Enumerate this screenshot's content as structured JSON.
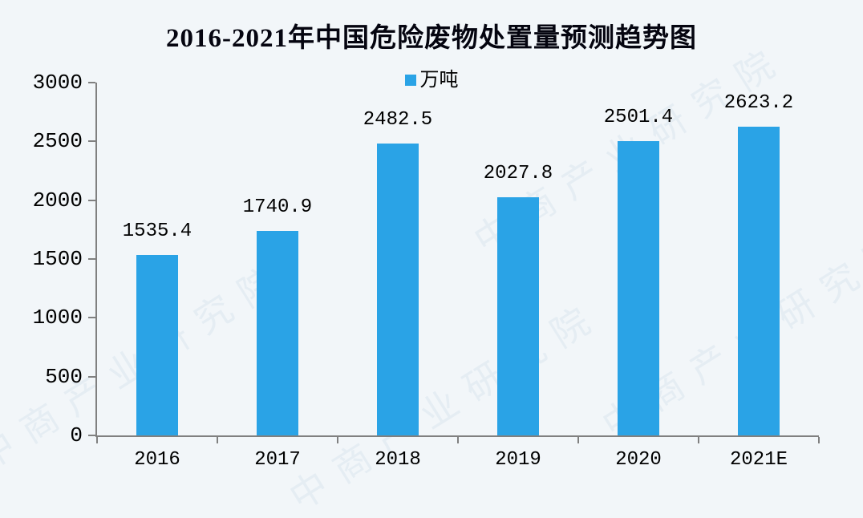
{
  "chart_data": {
    "type": "bar",
    "title": "2016-2021年中国危险废物处置量预测趋势图",
    "legend_label": "万吨",
    "legend_position": "top-center",
    "categories": [
      "2016",
      "2017",
      "2018",
      "2019",
      "2020",
      "2021E"
    ],
    "series": [
      {
        "name": "万吨",
        "values": [
          1535.4,
          1740.9,
          2482.5,
          2027.8,
          2501.4,
          2623.2
        ]
      }
    ],
    "value_labels": [
      "1535.4",
      "1740.9",
      "2482.5",
      "2027.8",
      "2501.4",
      "2623.2"
    ],
    "ylim": [
      0,
      3000
    ],
    "y_ticks": [
      0,
      500,
      1000,
      1500,
      2000,
      2500,
      3000
    ],
    "y_tick_labels": [
      "0",
      "500",
      "1000",
      "1500",
      "2000",
      "2500",
      "3000"
    ],
    "grid": false,
    "bar_color": "#2aa3e6",
    "axis_color": "#808080",
    "background_color": "#f2f6f9",
    "text_color": "#000000"
  },
  "watermark": {
    "text": "中商产业研究院"
  }
}
